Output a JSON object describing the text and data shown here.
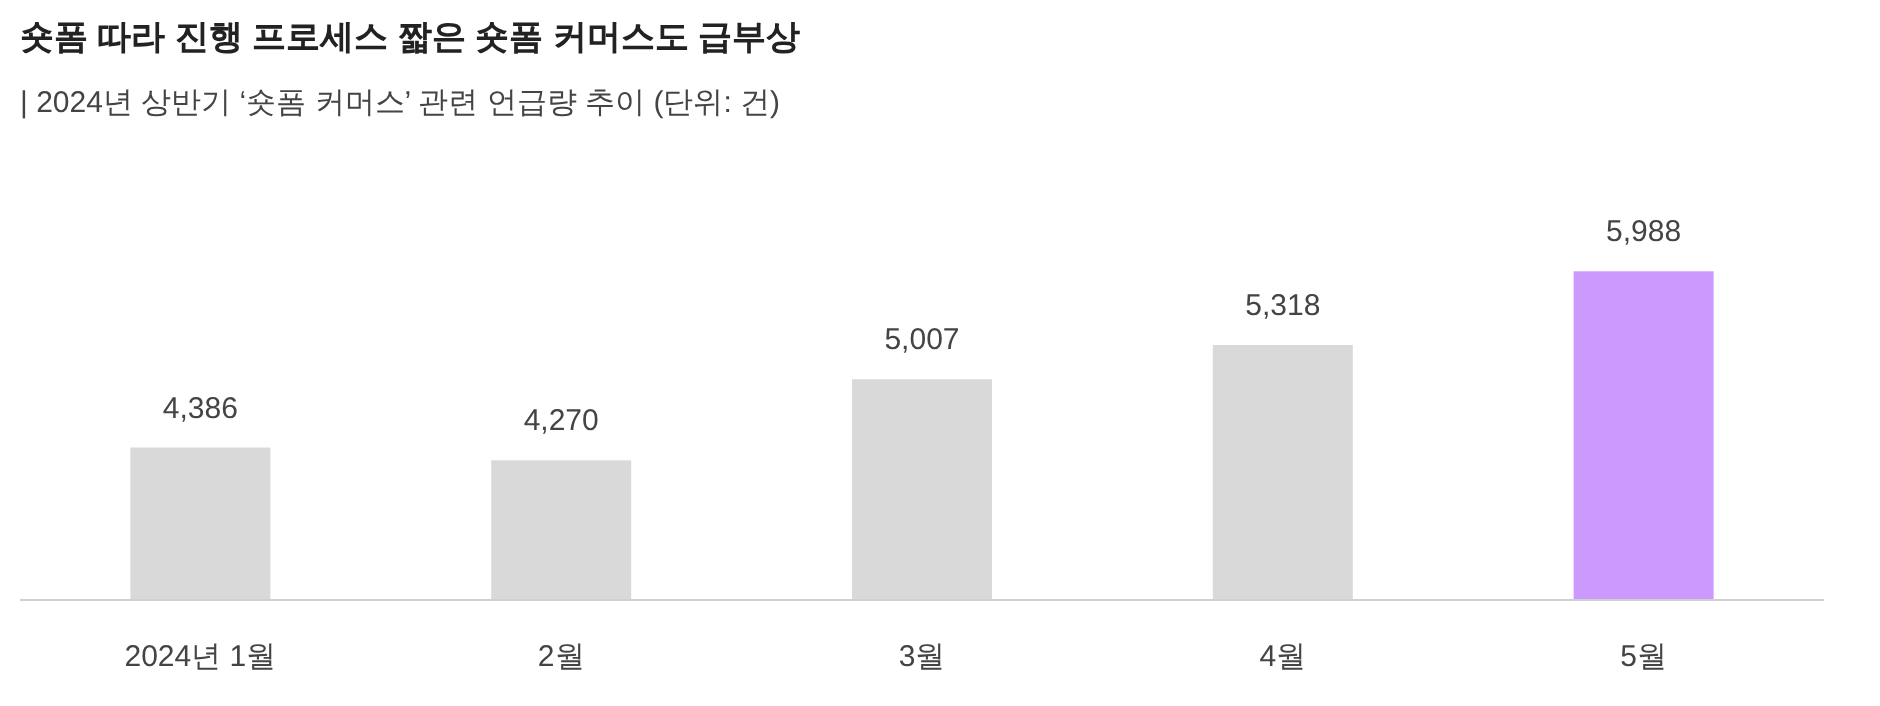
{
  "chart_data": {
    "type": "bar",
    "title": "숏폼 따라 진행 프로세스 짧은 숏폼 커머스도 급부상",
    "subtitle": "| 2024년 상반기 ‘숏폼 커머스’ 관련 언급량 추이 (단위: 건)",
    "categories": [
      "2024년 1월",
      "2월",
      "3월",
      "4월",
      "5월"
    ],
    "values": [
      4386,
      4270,
      5007,
      5318,
      5988
    ],
    "value_labels": [
      "4,386",
      "4,270",
      "5,007",
      "5,318",
      "5,988"
    ],
    "colors": [
      "#d9d9d9",
      "#d9d9d9",
      "#d9d9d9",
      "#d9d9d9",
      "#cc99ff"
    ],
    "ylim": [
      3000,
      6000
    ],
    "tick_labels": "x"
  }
}
